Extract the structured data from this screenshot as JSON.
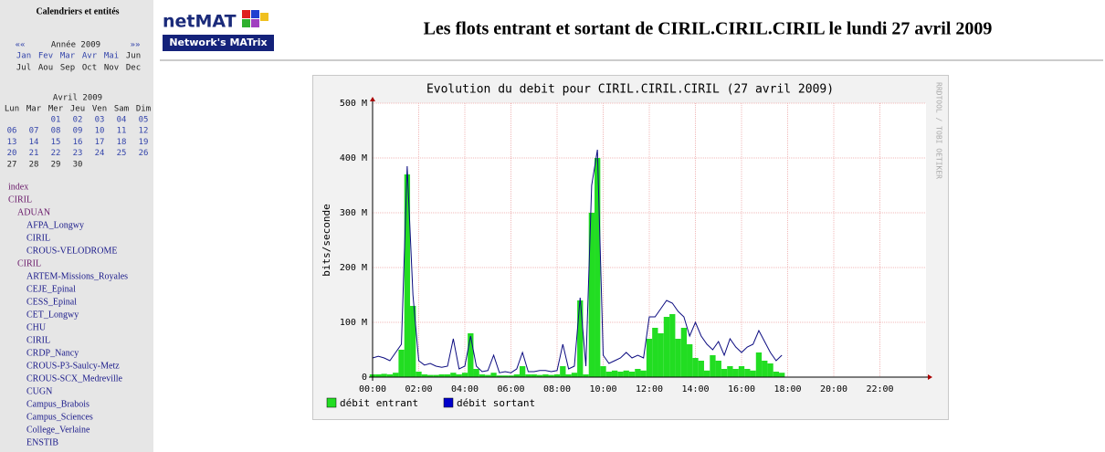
{
  "sidebar": {
    "title": "Calendriers et entités",
    "year_nav": {
      "prev": "««",
      "label": "Année 2009",
      "next": "»»"
    },
    "months": [
      "Jan",
      "Fev",
      "Mar",
      "Avr",
      "Mai",
      "Jun",
      "Jul",
      "Aou",
      "Sep",
      "Oct",
      "Nov",
      "Dec"
    ],
    "calendar": {
      "title": "Avril 2009",
      "weekdays": [
        "Lun",
        "Mar",
        "Mer",
        "Jeu",
        "Ven",
        "Sam",
        "Dim"
      ],
      "weeks": [
        [
          null,
          null,
          "01",
          "02",
          "03",
          "04",
          "05"
        ],
        [
          "06",
          "07",
          "08",
          "09",
          "10",
          "11",
          "12"
        ],
        [
          "13",
          "14",
          "15",
          "16",
          "17",
          "18",
          "19"
        ],
        [
          "20",
          "21",
          "22",
          "23",
          "24",
          "25",
          "26"
        ],
        [
          "27",
          "28",
          "29",
          "30",
          null,
          null,
          null
        ]
      ]
    },
    "tree": [
      {
        "label": "index",
        "depth": 0
      },
      {
        "label": "CIRIL",
        "depth": 0
      },
      {
        "label": "ADUAN",
        "depth": 1
      },
      {
        "label": "AFPA_Longwy",
        "depth": 2
      },
      {
        "label": "CIRIL",
        "depth": 2
      },
      {
        "label": "CROUS-VELODROME",
        "depth": 2
      },
      {
        "label": "CIRIL",
        "depth": 1
      },
      {
        "label": "ARTEM-Missions_Royales",
        "depth": 2
      },
      {
        "label": "CEJE_Epinal",
        "depth": 2
      },
      {
        "label": "CESS_Epinal",
        "depth": 2
      },
      {
        "label": "CET_Longwy",
        "depth": 2
      },
      {
        "label": "CHU",
        "depth": 2
      },
      {
        "label": "CIRIL",
        "depth": 2
      },
      {
        "label": "CRDP_Nancy",
        "depth": 2
      },
      {
        "label": "CROUS-P3-Saulcy-Metz",
        "depth": 2
      },
      {
        "label": "CROUS-SCX_Medreville",
        "depth": 2
      },
      {
        "label": "CUGN",
        "depth": 2
      },
      {
        "label": "Campus_Brabois",
        "depth": 2
      },
      {
        "label": "Campus_Sciences",
        "depth": 2
      },
      {
        "label": "College_Verlaine",
        "depth": 2
      },
      {
        "label": "ENSTIB",
        "depth": 2
      }
    ]
  },
  "header": {
    "logo": "netMAT",
    "logo_badge": "Network's MATrix",
    "title": "Les flots entrant et sortant de CIRIL.CIRIL.CIRIL le lundi 27 avril 2009"
  },
  "chart_data": {
    "type": "area-line",
    "title": "Evolution du debit pour CIRIL.CIRIL.CIRIL (27 avril 2009)",
    "y_label": "bits/seconde",
    "watermark": "RRDTOOL / TOBI OETIKER",
    "grid": true,
    "xlim": [
      0,
      24
    ],
    "ylim": [
      0,
      500
    ],
    "xticks": [
      {
        "value": 0,
        "label": "00:00"
      },
      {
        "value": 2,
        "label": "02:00"
      },
      {
        "value": 4,
        "label": "04:00"
      },
      {
        "value": 6,
        "label": "06:00"
      },
      {
        "value": 8,
        "label": "08:00"
      },
      {
        "value": 10,
        "label": "10:00"
      },
      {
        "value": 12,
        "label": "12:00"
      },
      {
        "value": 14,
        "label": "14:00"
      },
      {
        "value": 16,
        "label": "16:00"
      },
      {
        "value": 18,
        "label": "18:00"
      },
      {
        "value": 20,
        "label": "20:00"
      },
      {
        "value": 22,
        "label": "22:00"
      }
    ],
    "yticks": [
      0,
      {
        "value": 100,
        "label": "100 M"
      },
      {
        "value": 200,
        "label": "200 M"
      },
      {
        "value": 300,
        "label": "300 M"
      },
      {
        "value": 400,
        "label": "400 M"
      },
      {
        "value": 500,
        "label": "500 M"
      }
    ],
    "x": [
      0,
      0.25,
      0.5,
      0.75,
      1,
      1.25,
      1.5,
      1.75,
      2,
      2.25,
      2.5,
      2.75,
      3,
      3.25,
      3.5,
      3.75,
      4,
      4.25,
      4.5,
      4.75,
      5,
      5.25,
      5.5,
      5.75,
      6,
      6.25,
      6.5,
      6.75,
      7,
      7.25,
      7.5,
      7.75,
      8,
      8.25,
      8.5,
      8.75,
      9,
      9.25,
      9.5,
      9.75,
      10,
      10.25,
      10.5,
      10.75,
      11,
      11.25,
      11.5,
      11.75,
      12,
      12.25,
      12.5,
      12.75,
      13,
      13.25,
      13.5,
      13.75,
      14,
      14.25,
      14.5,
      14.75,
      15,
      15.25,
      15.5,
      15.75,
      16,
      16.25,
      16.5,
      16.75,
      17,
      17.25,
      17.5,
      17.75
    ],
    "series": [
      {
        "name": "débit entrant",
        "color": "#22dd22",
        "style": "area",
        "values": [
          5,
          5,
          6,
          5,
          8,
          50,
          370,
          130,
          10,
          5,
          4,
          4,
          5,
          5,
          8,
          5,
          8,
          80,
          15,
          5,
          4,
          8,
          3,
          3,
          3,
          5,
          20,
          5,
          5,
          4,
          5,
          4,
          5,
          20,
          5,
          8,
          140,
          5,
          300,
          400,
          20,
          10,
          12,
          10,
          12,
          10,
          15,
          12,
          70,
          90,
          80,
          110,
          115,
          70,
          90,
          60,
          35,
          30,
          12,
          40,
          30,
          15,
          20,
          15,
          20,
          15,
          12,
          45,
          30,
          25,
          10,
          8
        ]
      },
      {
        "name": "débit sortant",
        "color": "#0b0b80",
        "style": "line",
        "values": [
          35,
          38,
          35,
          30,
          45,
          60,
          385,
          150,
          30,
          22,
          25,
          20,
          18,
          20,
          70,
          15,
          20,
          75,
          20,
          10,
          12,
          40,
          8,
          10,
          8,
          15,
          45,
          10,
          10,
          12,
          12,
          10,
          12,
          60,
          15,
          20,
          145,
          20,
          350,
          415,
          40,
          25,
          30,
          35,
          45,
          35,
          40,
          35,
          110,
          110,
          125,
          140,
          135,
          120,
          110,
          75,
          100,
          75,
          60,
          50,
          65,
          40,
          70,
          55,
          45,
          55,
          60,
          85,
          65,
          45,
          30,
          40
        ]
      }
    ]
  }
}
